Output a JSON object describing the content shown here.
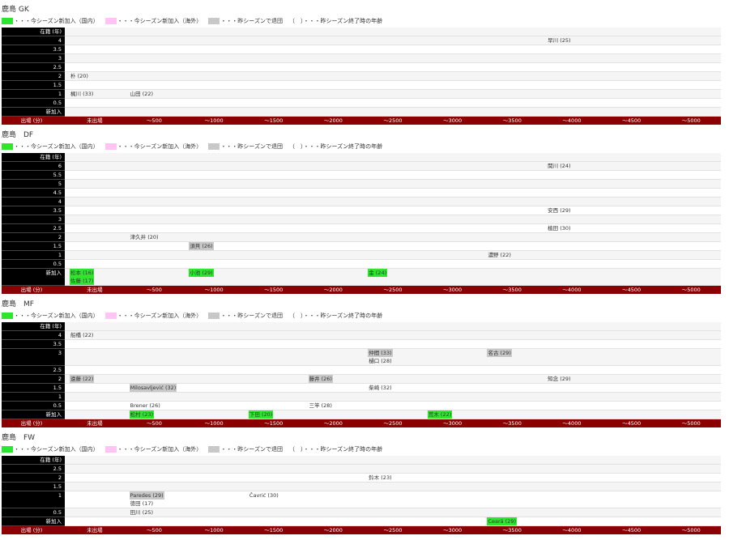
{
  "legend": [
    {
      "color": "#2ee62e",
      "text": "・・・今シーズン新加入（国内）"
    },
    {
      "color": "#ffc4f4",
      "text": "・・・今シーズン新加入（海外）"
    },
    {
      "color": "#c8c8c8",
      "text": "・・・昨シーズンで退団"
    },
    {
      "text": "（　）・・・昨シーズン終了時の年齢"
    }
  ],
  "sections": [
    {
      "title": "鹿島 GK",
      "header": "在籍 (年)",
      "footer_label": "出場 (分)",
      "columns": [
        "未出場",
        "～500",
        "～1000",
        "～1500",
        "～2000",
        "～2500",
        "～3000",
        "～3500",
        "～4000",
        "～4500",
        "～5000"
      ],
      "rows": [
        {
          "label": "4",
          "items": [
            {
              "col": 8,
              "text": "早川 (25)"
            }
          ]
        },
        {
          "label": "3.5"
        },
        {
          "label": "3"
        },
        {
          "label": "2.5"
        },
        {
          "label": "2",
          "items": [
            {
              "col": 0,
              "text": "朴 (20)"
            }
          ]
        },
        {
          "label": "1.5"
        },
        {
          "label": "1",
          "items": [
            {
              "col": 0,
              "text": "梶川 (33)"
            },
            {
              "col": 1,
              "text": "山田 (22)"
            }
          ]
        },
        {
          "label": "0.5"
        },
        {
          "label": "新加入"
        }
      ]
    },
    {
      "title": "鹿島　DF",
      "header": "在籍 (年)",
      "footer_label": "出場 (分)",
      "columns": [
        "未出場",
        "～500",
        "～1000",
        "～1500",
        "～2000",
        "～2500",
        "～3000",
        "～3500",
        "～4000",
        "～4500",
        "～5000"
      ],
      "rows": [
        {
          "label": "6",
          "items": [
            {
              "col": 8,
              "text": "関川 (24)"
            }
          ]
        },
        {
          "label": "5.5"
        },
        {
          "label": "5"
        },
        {
          "label": "4.5"
        },
        {
          "label": "4"
        },
        {
          "label": "3.5",
          "items": [
            {
              "col": 8,
              "text": "安西 (29)"
            }
          ]
        },
        {
          "label": "3"
        },
        {
          "label": "2.5",
          "items": [
            {
              "col": 8,
              "text": "植田 (30)"
            }
          ]
        },
        {
          "label": "2",
          "items": [
            {
              "col": 1,
              "text": "津久井 (20)"
            }
          ]
        },
        {
          "label": "1.5",
          "items": [
            {
              "col": 2,
              "text": "須貝 (26)",
              "legend": 2
            }
          ]
        },
        {
          "label": "1",
          "items": [
            {
              "col": 7,
              "text": "濃野 (22)"
            }
          ]
        },
        {
          "label": "0.5"
        },
        {
          "label": "新加入",
          "items": [
            {
              "col": 0,
              "text": "松本 (16)",
              "legend": 0
            },
            {
              "col": 0,
              "text": "佐藤 (17)",
              "legend": 0
            },
            {
              "col": 2,
              "text": "小池 (29)",
              "legend": 0
            },
            {
              "col": 5,
              "text": "金 (24)",
              "legend": 0
            }
          ]
        }
      ]
    },
    {
      "title": "鹿島　MF",
      "header": "在籍 (年)",
      "footer_label": "出場 (分)",
      "columns": [
        "未出場",
        "～500",
        "～1000",
        "～1500",
        "～2000",
        "～2500",
        "～3000",
        "～3500",
        "～4000",
        "～4500",
        "～5000"
      ],
      "rows": [
        {
          "label": "4",
          "items": [
            {
              "col": 0,
              "text": "船橋 (22)"
            }
          ]
        },
        {
          "label": "3.5"
        },
        {
          "label": "3",
          "items": [
            {
              "col": 5,
              "text": "仲間 (33)",
              "legend": 2
            },
            {
              "col": 5,
              "text": "樋口 (28)"
            },
            {
              "col": 7,
              "text": "名古 (29)",
              "legend": 2
            }
          ]
        },
        {
          "label": "2.5"
        },
        {
          "label": "2",
          "items": [
            {
              "col": 0,
              "text": "遠藤 (22)",
              "legend": 2
            },
            {
              "col": 4,
              "text": "藤井 (26)",
              "legend": 2
            },
            {
              "col": 8,
              "text": "知念 (29)"
            }
          ]
        },
        {
          "label": "1.5",
          "items": [
            {
              "col": 1,
              "text": "Milosavljević (32)",
              "legend": 2
            },
            {
              "col": 5,
              "text": "柴崎 (32)"
            }
          ]
        },
        {
          "label": "1"
        },
        {
          "label": "0.5",
          "items": [
            {
              "col": 1,
              "text": "Brener (26)"
            },
            {
              "col": 4,
              "text": "三竿 (28)"
            }
          ]
        },
        {
          "label": "新加入",
          "items": [
            {
              "col": 1,
              "text": "松村 (23)",
              "legend": 0
            },
            {
              "col": 3,
              "text": "下田 (20)",
              "legend": 0
            },
            {
              "col": 6,
              "text": "荒木 (22)",
              "legend": 0
            }
          ]
        }
      ]
    },
    {
      "title": "鹿島　FW",
      "header": "在籍 (年)",
      "footer_label": "出場 (分)",
      "columns": [
        "未出場",
        "～500",
        "～1000",
        "～1500",
        "～2000",
        "～2500",
        "～3000",
        "～3500",
        "～4000",
        "～4500",
        "～5000"
      ],
      "rows": [
        {
          "label": "2.5"
        },
        {
          "label": "2",
          "items": [
            {
              "col": 5,
              "text": "鈴木 (23)"
            }
          ]
        },
        {
          "label": "1.5"
        },
        {
          "label": "1",
          "items": [
            {
              "col": 1,
              "text": "Paredes (29)",
              "legend": 2
            },
            {
              "col": 1,
              "text": "徳田 (17)"
            },
            {
              "col": 3,
              "text": "Čavrić (30)"
            }
          ]
        },
        {
          "label": "0.5",
          "items": [
            {
              "col": 1,
              "text": "田川 (25)"
            }
          ]
        },
        {
          "label": "新加入",
          "items": [
            {
              "col": 7,
              "text": "Ceará (29)",
              "legend": 0
            }
          ]
        }
      ]
    }
  ]
}
